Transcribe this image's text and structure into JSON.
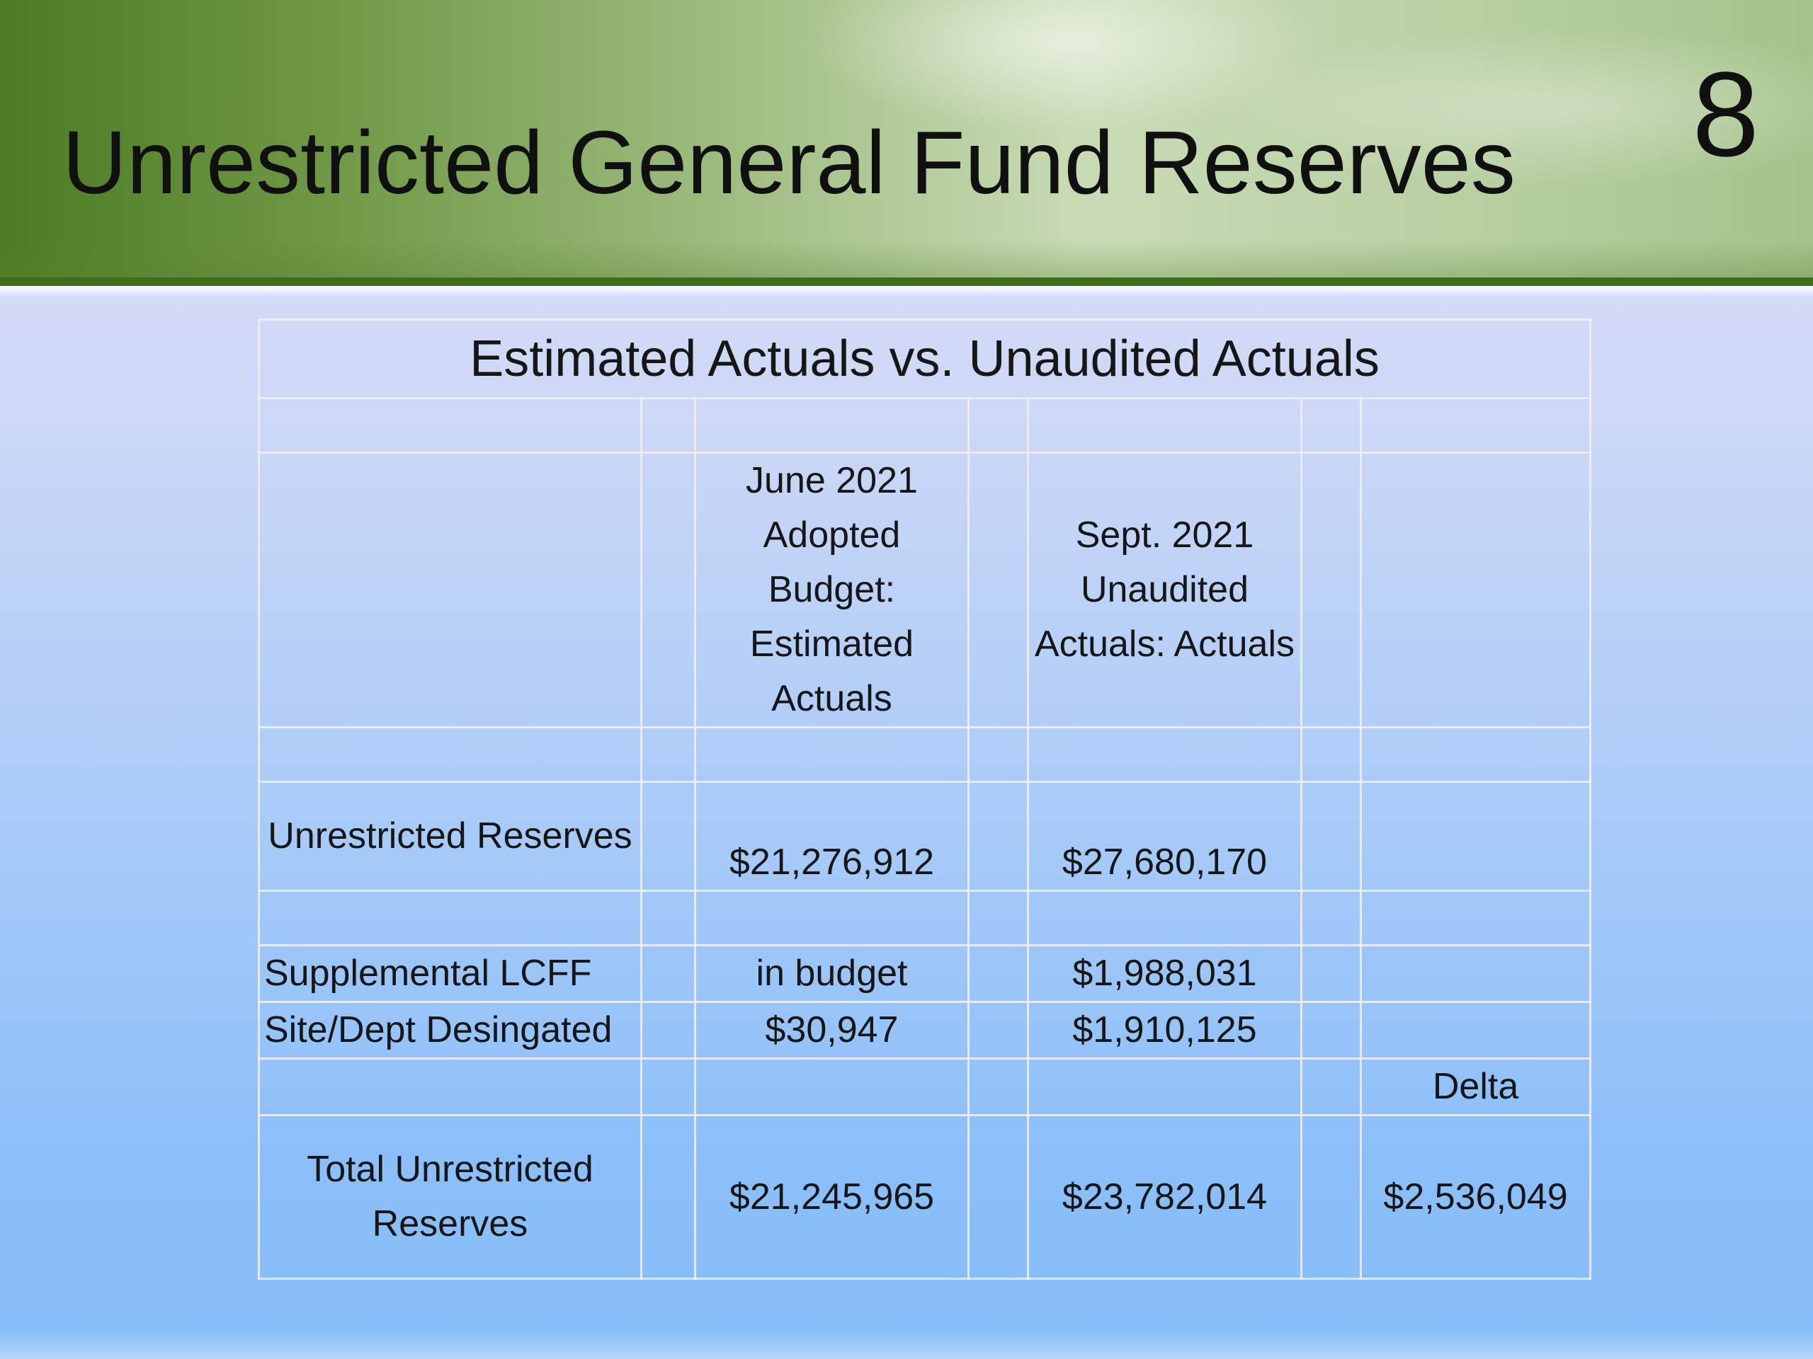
{
  "slide": {
    "title": "Unrestricted General Fund Reserves",
    "number": "8"
  },
  "table": {
    "caption": "Estimated Actuals vs. Unaudited Actuals",
    "col_headers": {
      "estimated": "June 2021 Adopted Budget: Estimated Actuals",
      "unaudited": "Sept. 2021 Unaudited Actuals: Actuals",
      "delta": "Delta"
    },
    "rows": [
      {
        "label": "Unrestricted Reserves",
        "estimated": "$21,276,912",
        "unaudited": "$27,680,170"
      },
      {
        "label": "Supplemental LCFF",
        "estimated": "in budget",
        "unaudited": "$1,988,031"
      },
      {
        "label": "Site/Dept Desingated",
        "estimated": "$30,947",
        "unaudited": "$1,910,125"
      }
    ],
    "total": {
      "label": "Total Unrestricted Reserves",
      "estimated": "$21,245,965",
      "unaudited": "$23,782,014",
      "delta": "$2,536,049"
    }
  }
}
